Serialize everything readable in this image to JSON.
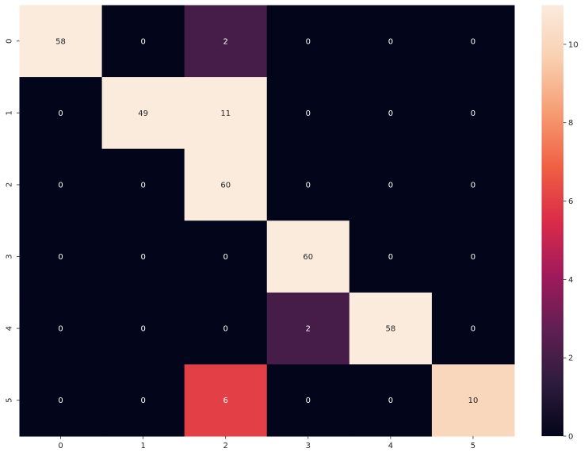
{
  "chart_data": {
    "type": "heatmap",
    "title": "",
    "xlabel": "",
    "ylabel": "",
    "x_categories": [
      "0",
      "1",
      "2",
      "3",
      "4",
      "5"
    ],
    "y_categories": [
      "0",
      "1",
      "2",
      "3",
      "4",
      "5"
    ],
    "values": [
      [
        58,
        0,
        2,
        0,
        0,
        0
      ],
      [
        0,
        49,
        11,
        0,
        0,
        0
      ],
      [
        0,
        0,
        60,
        0,
        0,
        0
      ],
      [
        0,
        0,
        0,
        60,
        0,
        0
      ],
      [
        0,
        0,
        0,
        2,
        58,
        0
      ],
      [
        0,
        0,
        6,
        0,
        0,
        10
      ]
    ],
    "annotations": [
      [
        "58",
        "0",
        "2",
        "0",
        "0",
        "0"
      ],
      [
        "0",
        "49",
        "11",
        "0",
        "0",
        "0"
      ],
      [
        "0",
        "0",
        "60",
        "0",
        "0",
        "0"
      ],
      [
        "0",
        "0",
        "0",
        "60",
        "0",
        "0"
      ],
      [
        "0",
        "0",
        "0",
        "2",
        "58",
        "0"
      ],
      [
        "0",
        "0",
        "6",
        "0",
        "0",
        "10"
      ]
    ],
    "color_range": [
      0,
      11
    ],
    "colorbar": {
      "ticks": [
        0,
        2,
        4,
        6,
        8,
        10
      ],
      "tick_labels": [
        "0",
        "2",
        "4",
        "6",
        "8",
        "10"
      ]
    },
    "colormap": "rocket",
    "colormap_stops": [
      "#03051a",
      "#2e1c3e",
      "#611f53",
      "#a11a5b",
      "#db2c48",
      "#f06043",
      "#f69c73",
      "#f9cfb0",
      "#faebdd"
    ],
    "grid": false,
    "legend": "colorbar-right"
  }
}
